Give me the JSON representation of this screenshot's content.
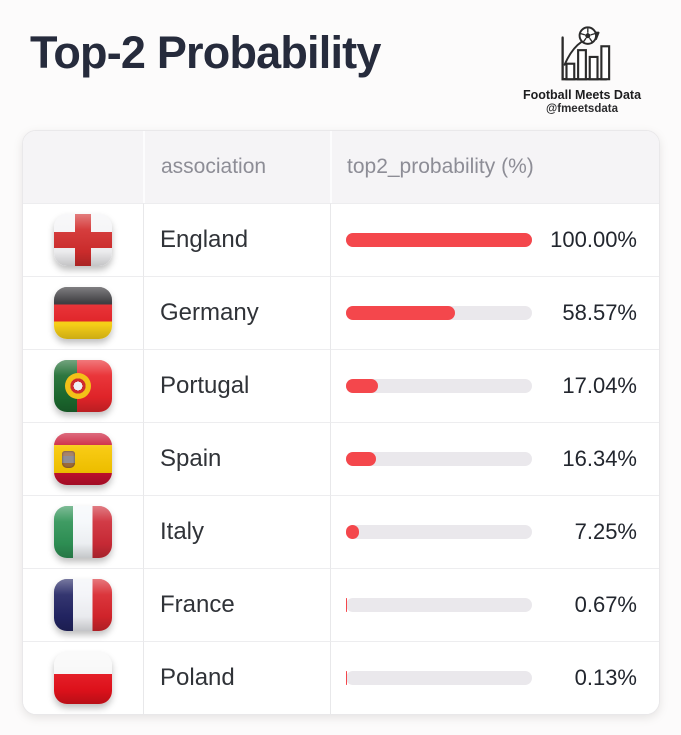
{
  "page": {
    "title": "Top-2 Probability",
    "brand": {
      "name": "Football Meets Data",
      "handle": "@fmeetsdata",
      "icon": "bar-chart-football-icon"
    }
  },
  "table": {
    "columns": [
      {
        "key": "flag",
        "label": ""
      },
      {
        "key": "association",
        "label": "association"
      },
      {
        "key": "top2_probability",
        "label": "top2_probability (%)"
      }
    ],
    "rows": [
      {
        "association": "England",
        "value": 100.0,
        "value_label": "100.00%",
        "flag_icon": "england-flag-icon"
      },
      {
        "association": "Germany",
        "value": 58.57,
        "value_label": "58.57%",
        "flag_icon": "germany-flag-icon"
      },
      {
        "association": "Portugal",
        "value": 17.04,
        "value_label": "17.04%",
        "flag_icon": "portugal-flag-icon"
      },
      {
        "association": "Spain",
        "value": 16.34,
        "value_label": "16.34%",
        "flag_icon": "spain-flag-icon"
      },
      {
        "association": "Italy",
        "value": 7.25,
        "value_label": "7.25%",
        "flag_icon": "italy-flag-icon"
      },
      {
        "association": "France",
        "value": 0.67,
        "value_label": "0.67%",
        "flag_icon": "france-flag-icon"
      },
      {
        "association": "Poland",
        "value": 0.13,
        "value_label": "0.13%",
        "flag_icon": "poland-flag-icon"
      }
    ]
  },
  "colors": {
    "bar_fill": "#f4474c",
    "bar_track": "#eae8ec",
    "title_text": "#262b3c",
    "header_text": "#8d8d96",
    "header_bg": "#f5f4f6"
  },
  "chart_data": {
    "type": "table",
    "title": "Top-2 Probability",
    "columns": [
      "association",
      "top2_probability (%)"
    ],
    "categories": [
      "England",
      "Germany",
      "Portugal",
      "Spain",
      "Italy",
      "France",
      "Poland"
    ],
    "values": [
      100.0,
      58.57,
      17.04,
      16.34,
      7.25,
      0.67,
      0.13
    ],
    "bar_range": [
      0,
      100
    ],
    "annotations": [
      "Football Meets Data",
      "@fmeetsdata"
    ]
  }
}
